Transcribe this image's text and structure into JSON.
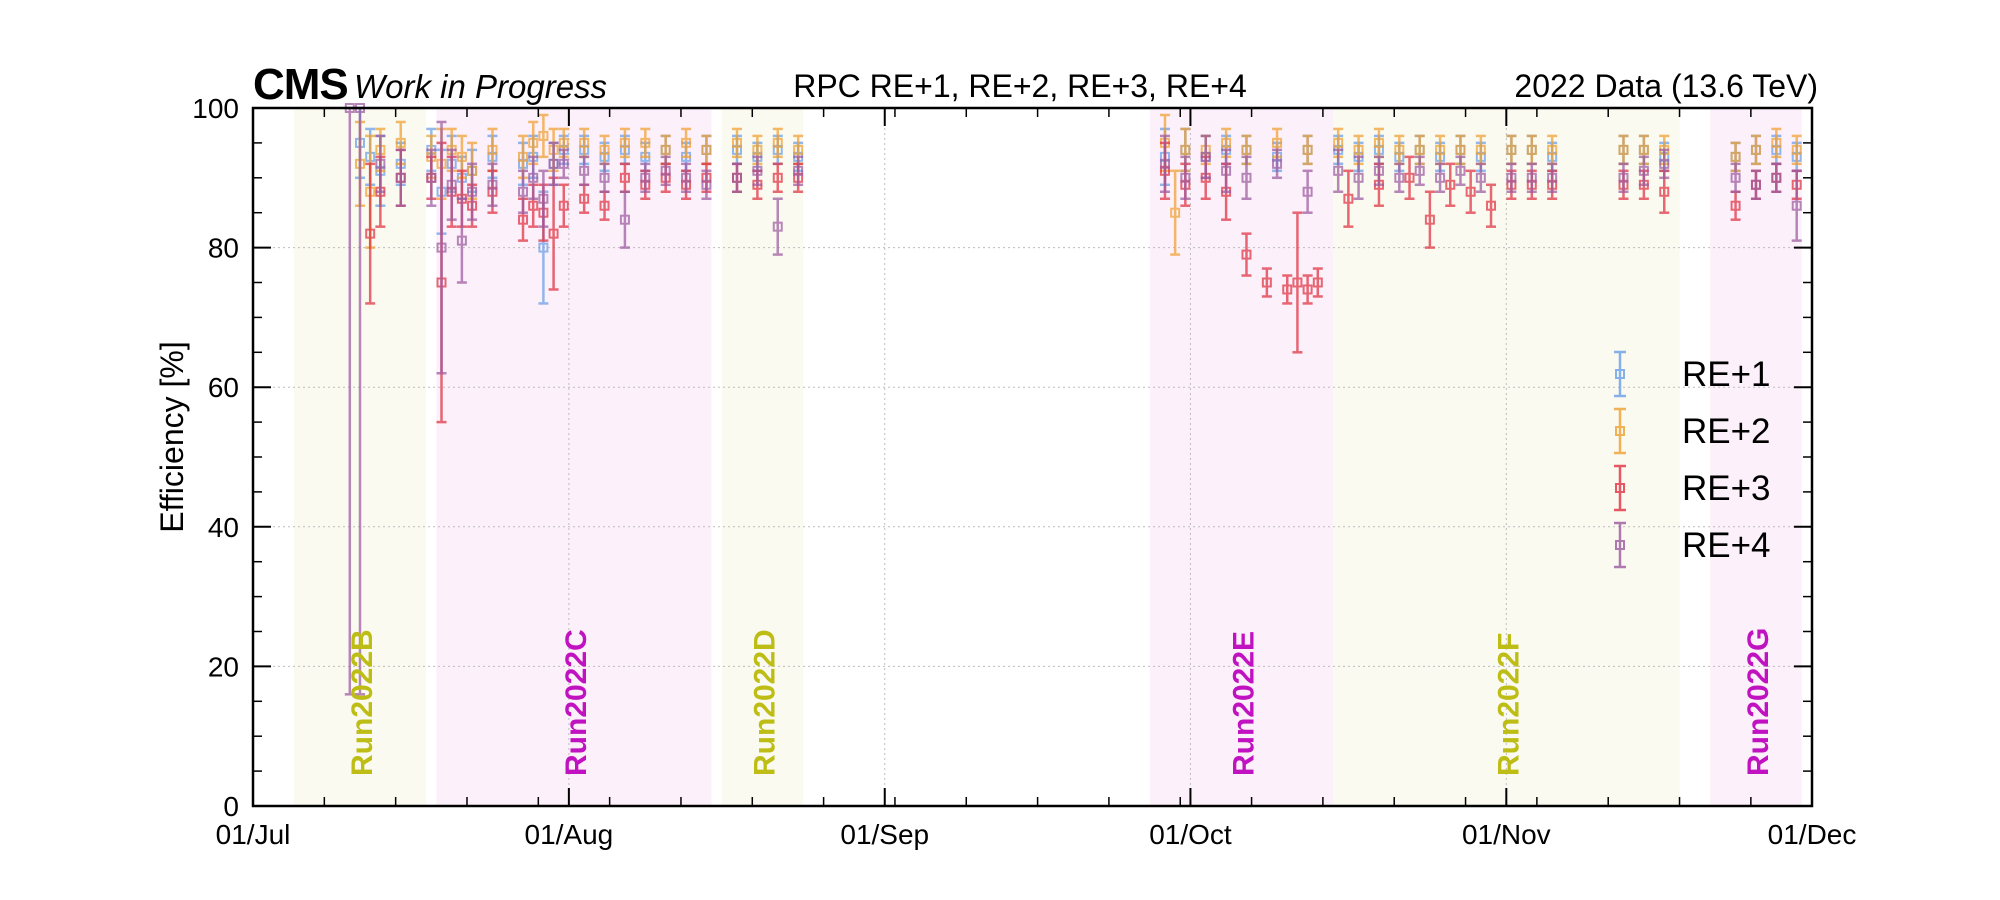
{
  "header": {
    "cms": "CMS",
    "status": "Work in Progress",
    "center": "RPC RE+1, RE+2, RE+3, RE+4",
    "right": "2022 Data (13.6 TeV)"
  },
  "chart_data": {
    "type": "scatter",
    "title": "RPC RE+1, RE+2, RE+3, RE+4",
    "ylabel": "Efficiency [%]",
    "xlabel": "",
    "ylim": [
      0,
      100
    ],
    "xlim": [
      "2022-07-01",
      "2022-12-01"
    ],
    "x_ticks": [
      {
        "date": "2022-07-01",
        "label": "01/Jul"
      },
      {
        "date": "2022-08-01",
        "label": "01/Aug"
      },
      {
        "date": "2022-09-01",
        "label": "01/Sep"
      },
      {
        "date": "2022-10-01",
        "label": "01/Oct"
      },
      {
        "date": "2022-11-01",
        "label": "01/Nov"
      },
      {
        "date": "2022-12-01",
        "label": "01/Dec"
      }
    ],
    "y_ticks": [
      0,
      20,
      40,
      60,
      80,
      100
    ],
    "grid": true,
    "legend": "right",
    "runs": [
      {
        "label": "Run2022B",
        "start": "2022-07-05",
        "end": "2022-07-18",
        "color": "#fafaf0",
        "label_color": "#bdbd16"
      },
      {
        "label": "Run2022C",
        "start": "2022-07-19",
        "end": "2022-08-15",
        "color": "#fcf0fa",
        "label_color": "#c012c0"
      },
      {
        "label": "Run2022D",
        "start": "2022-08-16",
        "end": "2022-08-24",
        "color": "#fafaf0",
        "label_color": "#bdbd16"
      },
      {
        "label": "Run2022E",
        "start": "2022-09-27",
        "end": "2022-10-15",
        "color": "#fcf0fa",
        "label_color": "#c012c0"
      },
      {
        "label": "Run2022F",
        "start": "2022-10-15",
        "end": "2022-11-18",
        "color": "#fafaf0",
        "label_color": "#bdbd16"
      },
      {
        "label": "Run2022G",
        "start": "2022-11-21",
        "end": "2022-11-30",
        "color": "#fcf0fa",
        "label_color": "#c012c0"
      }
    ],
    "series": [
      {
        "name": "RE+1",
        "color": "#6a9ee8",
        "points": [
          [
            "2022-07-11",
            95,
            5
          ],
          [
            "2022-07-12",
            93,
            4
          ],
          [
            "2022-07-13",
            91,
            5
          ],
          [
            "2022-07-15",
            92,
            3
          ],
          [
            "2022-07-18",
            94,
            3
          ],
          [
            "2022-07-19",
            88,
            6
          ],
          [
            "2022-07-20",
            92,
            4
          ],
          [
            "2022-07-21",
            90,
            3
          ],
          [
            "2022-07-22",
            91,
            3
          ],
          [
            "2022-07-24",
            93,
            3
          ],
          [
            "2022-07-27",
            92,
            3
          ],
          [
            "2022-07-28",
            93,
            3
          ],
          [
            "2022-07-29",
            80,
            8
          ],
          [
            "2022-07-30",
            92,
            3
          ],
          [
            "2022-07-31",
            94,
            2
          ],
          [
            "2022-08-02",
            94,
            2
          ],
          [
            "2022-08-04",
            93,
            2
          ],
          [
            "2022-08-06",
            94,
            2
          ],
          [
            "2022-08-08",
            93,
            2
          ],
          [
            "2022-08-10",
            94,
            2
          ],
          [
            "2022-08-12",
            93,
            2
          ],
          [
            "2022-08-14",
            94,
            2
          ],
          [
            "2022-08-17",
            94,
            2
          ],
          [
            "2022-08-19",
            93,
            2
          ],
          [
            "2022-08-21",
            94,
            2
          ],
          [
            "2022-08-23",
            93,
            2
          ],
          [
            "2022-09-28",
            93,
            4
          ],
          [
            "2022-09-30",
            94,
            3
          ],
          [
            "2022-10-02",
            93,
            3
          ],
          [
            "2022-10-04",
            94,
            2
          ],
          [
            "2022-10-06",
            94,
            2
          ],
          [
            "2022-10-09",
            93,
            2
          ],
          [
            "2022-10-12",
            94,
            2
          ],
          [
            "2022-10-15",
            94,
            2
          ],
          [
            "2022-10-17",
            93,
            2
          ],
          [
            "2022-10-19",
            94,
            2
          ],
          [
            "2022-10-21",
            93,
            2
          ],
          [
            "2022-10-23",
            94,
            2
          ],
          [
            "2022-10-25",
            93,
            2
          ],
          [
            "2022-10-27",
            94,
            2
          ],
          [
            "2022-10-29",
            93,
            2
          ],
          [
            "2022-11-01",
            94,
            2
          ],
          [
            "2022-11-03",
            94,
            2
          ],
          [
            "2022-11-05",
            93,
            2
          ],
          [
            "2022-11-12",
            94,
            2
          ],
          [
            "2022-11-14",
            94,
            2
          ],
          [
            "2022-11-16",
            93,
            2
          ],
          [
            "2022-11-23",
            93,
            2
          ],
          [
            "2022-11-25",
            94,
            2
          ],
          [
            "2022-11-27",
            94,
            2
          ],
          [
            "2022-11-29",
            93,
            2
          ]
        ]
      },
      {
        "name": "RE+2",
        "color": "#f0a030",
        "points": [
          [
            "2022-07-11",
            92,
            6
          ],
          [
            "2022-07-12",
            88,
            8
          ],
          [
            "2022-07-13",
            94,
            3
          ],
          [
            "2022-07-15",
            95,
            3
          ],
          [
            "2022-07-18",
            93,
            3
          ],
          [
            "2022-07-19",
            92,
            5
          ],
          [
            "2022-07-20",
            94,
            3
          ],
          [
            "2022-07-21",
            93,
            3
          ],
          [
            "2022-07-22",
            91,
            4
          ],
          [
            "2022-07-24",
            94,
            3
          ],
          [
            "2022-07-27",
            93,
            3
          ],
          [
            "2022-07-28",
            95,
            3
          ],
          [
            "2022-07-29",
            96,
            3
          ],
          [
            "2022-07-30",
            94,
            3
          ],
          [
            "2022-07-31",
            95,
            2
          ],
          [
            "2022-08-02",
            95,
            2
          ],
          [
            "2022-08-04",
            94,
            2
          ],
          [
            "2022-08-06",
            95,
            2
          ],
          [
            "2022-08-08",
            95,
            2
          ],
          [
            "2022-08-10",
            94,
            2
          ],
          [
            "2022-08-12",
            95,
            2
          ],
          [
            "2022-08-14",
            94,
            2
          ],
          [
            "2022-08-17",
            95,
            2
          ],
          [
            "2022-08-19",
            94,
            2
          ],
          [
            "2022-08-21",
            95,
            2
          ],
          [
            "2022-08-23",
            94,
            2
          ],
          [
            "2022-09-28",
            95,
            4
          ],
          [
            "2022-09-29",
            85,
            6
          ],
          [
            "2022-09-30",
            94,
            3
          ],
          [
            "2022-10-02",
            94,
            2
          ],
          [
            "2022-10-04",
            95,
            2
          ],
          [
            "2022-10-06",
            94,
            2
          ],
          [
            "2022-10-09",
            95,
            2
          ],
          [
            "2022-10-12",
            94,
            2
          ],
          [
            "2022-10-15",
            95,
            2
          ],
          [
            "2022-10-17",
            94,
            2
          ],
          [
            "2022-10-19",
            95,
            2
          ],
          [
            "2022-10-21",
            94,
            2
          ],
          [
            "2022-10-23",
            94,
            2
          ],
          [
            "2022-10-25",
            94,
            2
          ],
          [
            "2022-10-27",
            94,
            2
          ],
          [
            "2022-10-29",
            94,
            2
          ],
          [
            "2022-11-01",
            94,
            2
          ],
          [
            "2022-11-03",
            94,
            2
          ],
          [
            "2022-11-05",
            94,
            2
          ],
          [
            "2022-11-12",
            94,
            2
          ],
          [
            "2022-11-14",
            94,
            2
          ],
          [
            "2022-11-16",
            94,
            2
          ],
          [
            "2022-11-23",
            93,
            2
          ],
          [
            "2022-11-25",
            94,
            2
          ],
          [
            "2022-11-27",
            95,
            2
          ],
          [
            "2022-11-29",
            94,
            2
          ]
        ]
      },
      {
        "name": "RE+3",
        "color": "#e03040",
        "points": [
          [
            "2022-07-12",
            82,
            10
          ],
          [
            "2022-07-13",
            88,
            5
          ],
          [
            "2022-07-15",
            90,
            4
          ],
          [
            "2022-07-18",
            90,
            3
          ],
          [
            "2022-07-19",
            75,
            20
          ],
          [
            "2022-07-20",
            88,
            5
          ],
          [
            "2022-07-21",
            87,
            4
          ],
          [
            "2022-07-22",
            86,
            3
          ],
          [
            "2022-07-24",
            88,
            3
          ],
          [
            "2022-07-27",
            84,
            3
          ],
          [
            "2022-07-28",
            86,
            3
          ],
          [
            "2022-07-29",
            85,
            4
          ],
          [
            "2022-07-30",
            82,
            8
          ],
          [
            "2022-07-31",
            86,
            3
          ],
          [
            "2022-08-02",
            87,
            2
          ],
          [
            "2022-08-04",
            86,
            2
          ],
          [
            "2022-08-06",
            90,
            2
          ],
          [
            "2022-08-08",
            89,
            2
          ],
          [
            "2022-08-10",
            90,
            2
          ],
          [
            "2022-08-12",
            89,
            2
          ],
          [
            "2022-08-14",
            90,
            2
          ],
          [
            "2022-08-17",
            90,
            2
          ],
          [
            "2022-08-19",
            89,
            2
          ],
          [
            "2022-08-21",
            90,
            2
          ],
          [
            "2022-08-23",
            90,
            2
          ],
          [
            "2022-09-28",
            91,
            4
          ],
          [
            "2022-09-30",
            89,
            3
          ],
          [
            "2022-10-02",
            90,
            3
          ],
          [
            "2022-10-04",
            88,
            4
          ],
          [
            "2022-10-06",
            79,
            3
          ],
          [
            "2022-10-08",
            75,
            2
          ],
          [
            "2022-10-10",
            74,
            2
          ],
          [
            "2022-10-11",
            75,
            10
          ],
          [
            "2022-10-12",
            74,
            2
          ],
          [
            "2022-10-13",
            75,
            2
          ],
          [
            "2022-10-16",
            87,
            4
          ],
          [
            "2022-10-19",
            89,
            3
          ],
          [
            "2022-10-22",
            90,
            3
          ],
          [
            "2022-10-24",
            84,
            4
          ],
          [
            "2022-10-26",
            89,
            3
          ],
          [
            "2022-10-28",
            88,
            3
          ],
          [
            "2022-10-30",
            86,
            3
          ],
          [
            "2022-11-01",
            89,
            2
          ],
          [
            "2022-11-03",
            89,
            2
          ],
          [
            "2022-11-05",
            89,
            2
          ],
          [
            "2022-11-12",
            89,
            2
          ],
          [
            "2022-11-14",
            89,
            2
          ],
          [
            "2022-11-16",
            88,
            3
          ],
          [
            "2022-11-23",
            86,
            2
          ],
          [
            "2022-11-25",
            89,
            2
          ],
          [
            "2022-11-27",
            90,
            2
          ],
          [
            "2022-11-29",
            89,
            2
          ]
        ]
      },
      {
        "name": "RE+4",
        "color": "#9c5aa0",
        "points": [
          [
            "2022-07-10",
            100,
            84
          ],
          [
            "2022-07-11",
            100,
            84
          ],
          [
            "2022-07-13",
            92,
            4
          ],
          [
            "2022-07-15",
            90,
            4
          ],
          [
            "2022-07-18",
            90,
            4
          ],
          [
            "2022-07-19",
            80,
            18
          ],
          [
            "2022-07-20",
            89,
            5
          ],
          [
            "2022-07-21",
            81,
            6
          ],
          [
            "2022-07-22",
            88,
            4
          ],
          [
            "2022-07-24",
            89,
            3
          ],
          [
            "2022-07-27",
            88,
            3
          ],
          [
            "2022-07-28",
            90,
            3
          ],
          [
            "2022-07-29",
            87,
            4
          ],
          [
            "2022-07-30",
            92,
            3
          ],
          [
            "2022-07-31",
            92,
            2
          ],
          [
            "2022-08-02",
            91,
            2
          ],
          [
            "2022-08-04",
            90,
            2
          ],
          [
            "2022-08-06",
            84,
            4
          ],
          [
            "2022-08-08",
            90,
            2
          ],
          [
            "2022-08-10",
            91,
            2
          ],
          [
            "2022-08-12",
            90,
            2
          ],
          [
            "2022-08-14",
            89,
            2
          ],
          [
            "2022-08-17",
            90,
            2
          ],
          [
            "2022-08-19",
            91,
            2
          ],
          [
            "2022-08-21",
            83,
            4
          ],
          [
            "2022-08-23",
            91,
            2
          ],
          [
            "2022-09-28",
            92,
            4
          ],
          [
            "2022-09-30",
            90,
            3
          ],
          [
            "2022-10-02",
            93,
            3
          ],
          [
            "2022-10-04",
            91,
            3
          ],
          [
            "2022-10-06",
            90,
            3
          ],
          [
            "2022-10-09",
            92,
            2
          ],
          [
            "2022-10-12",
            88,
            3
          ],
          [
            "2022-10-15",
            91,
            3
          ],
          [
            "2022-10-17",
            90,
            3
          ],
          [
            "2022-10-19",
            91,
            2
          ],
          [
            "2022-10-21",
            90,
            2
          ],
          [
            "2022-10-23",
            91,
            2
          ],
          [
            "2022-10-25",
            90,
            2
          ],
          [
            "2022-10-27",
            91,
            2
          ],
          [
            "2022-10-29",
            90,
            2
          ],
          [
            "2022-11-01",
            90,
            2
          ],
          [
            "2022-11-03",
            90,
            2
          ],
          [
            "2022-11-05",
            90,
            2
          ],
          [
            "2022-11-12",
            90,
            2
          ],
          [
            "2022-11-14",
            91,
            2
          ],
          [
            "2022-11-16",
            92,
            2
          ],
          [
            "2022-11-23",
            90,
            2
          ],
          [
            "2022-11-25",
            89,
            2
          ],
          [
            "2022-11-27",
            90,
            2
          ],
          [
            "2022-11-29",
            86,
            5
          ]
        ]
      }
    ]
  }
}
